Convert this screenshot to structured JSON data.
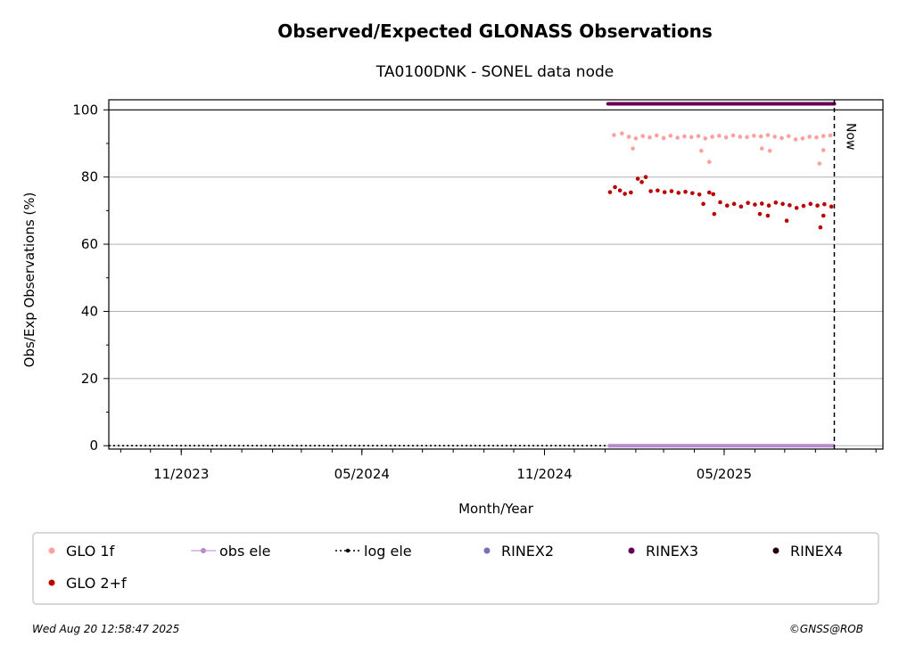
{
  "chart_data": {
    "type": "scatter",
    "title": "Observed/Expected GLONASS Observations",
    "subtitle": "TA0100DNK - SONEL data node",
    "xlabel": "Month/Year",
    "ylabel": "Obs/Exp Observations (%)",
    "x_range": [
      "2023-08-20",
      "2025-10-08"
    ],
    "ylim": [
      -1,
      103
    ],
    "x_ticks": [
      {
        "date": "2023-11-01",
        "label": "11/2023"
      },
      {
        "date": "2024-05-01",
        "label": "05/2024"
      },
      {
        "date": "2024-11-01",
        "label": "11/2024"
      },
      {
        "date": "2025-05-01",
        "label": "05/2025"
      }
    ],
    "y_ticks": [
      0,
      20,
      40,
      60,
      80,
      100
    ],
    "grid": "horizontal",
    "now_date": "2025-08-20",
    "now_label": "Now",
    "series": [
      {
        "name": "GLO 1f",
        "color": "#ffa0a0",
        "points": [
          [
            "2025-01-10",
            92.5
          ],
          [
            "2025-01-18",
            93.0
          ],
          [
            "2025-01-25",
            92.0
          ],
          [
            "2025-02-01",
            91.5
          ],
          [
            "2025-02-08",
            92.2
          ],
          [
            "2025-02-15",
            91.8
          ],
          [
            "2025-02-22",
            92.4
          ],
          [
            "2025-03-01",
            91.6
          ],
          [
            "2025-03-08",
            92.3
          ],
          [
            "2025-03-15",
            91.7
          ],
          [
            "2025-03-22",
            92.1
          ],
          [
            "2025-03-29",
            91.9
          ],
          [
            "2025-04-05",
            92.2
          ],
          [
            "2025-04-12",
            91.5
          ],
          [
            "2025-04-19",
            92.0
          ],
          [
            "2025-04-26",
            92.3
          ],
          [
            "2025-05-03",
            91.8
          ],
          [
            "2025-05-10",
            92.4
          ],
          [
            "2025-05-17",
            92.0
          ],
          [
            "2025-05-24",
            91.9
          ],
          [
            "2025-05-31",
            92.3
          ],
          [
            "2025-06-07",
            92.1
          ],
          [
            "2025-06-14",
            92.5
          ],
          [
            "2025-06-21",
            92.0
          ],
          [
            "2025-06-28",
            91.6
          ],
          [
            "2025-07-05",
            92.2
          ],
          [
            "2025-07-12",
            91.2
          ],
          [
            "2025-07-19",
            91.5
          ],
          [
            "2025-07-26",
            92.0
          ],
          [
            "2025-08-02",
            91.8
          ],
          [
            "2025-08-09",
            92.2
          ],
          [
            "2025-08-16",
            92.4
          ],
          [
            "2025-01-29",
            88.5
          ],
          [
            "2025-04-08",
            87.8
          ],
          [
            "2025-04-16",
            84.5
          ],
          [
            "2025-06-08",
            88.5
          ],
          [
            "2025-06-16",
            87.8
          ],
          [
            "2025-08-05",
            84.0
          ],
          [
            "2025-08-09",
            88.0
          ]
        ]
      },
      {
        "name": "GLO 2+f",
        "color": "#bb0000",
        "points": [
          [
            "2025-01-06",
            75.5
          ],
          [
            "2025-01-11",
            77.0
          ],
          [
            "2025-01-16",
            76.0
          ],
          [
            "2025-01-21",
            75.0
          ],
          [
            "2025-01-27",
            75.4
          ],
          [
            "2025-02-03",
            79.5
          ],
          [
            "2025-02-07",
            78.5
          ],
          [
            "2025-02-11",
            80.0
          ],
          [
            "2025-02-16",
            75.8
          ],
          [
            "2025-02-23",
            76.0
          ],
          [
            "2025-03-02",
            75.5
          ],
          [
            "2025-03-09",
            75.8
          ],
          [
            "2025-03-16",
            75.3
          ],
          [
            "2025-03-23",
            75.6
          ],
          [
            "2025-03-30",
            75.2
          ],
          [
            "2025-04-06",
            74.8
          ],
          [
            "2025-04-10",
            72.0
          ],
          [
            "2025-04-16",
            75.4
          ],
          [
            "2025-04-20",
            74.9
          ],
          [
            "2025-04-27",
            72.5
          ],
          [
            "2025-05-04",
            71.5
          ],
          [
            "2025-05-11",
            72.0
          ],
          [
            "2025-05-18",
            71.2
          ],
          [
            "2025-05-25",
            72.3
          ],
          [
            "2025-06-01",
            71.8
          ],
          [
            "2025-06-08",
            72.1
          ],
          [
            "2025-06-15",
            71.5
          ],
          [
            "2025-06-22",
            72.4
          ],
          [
            "2025-06-29",
            72.0
          ],
          [
            "2025-07-06",
            71.6
          ],
          [
            "2025-07-13",
            70.8
          ],
          [
            "2025-07-20",
            71.4
          ],
          [
            "2025-07-27",
            72.0
          ],
          [
            "2025-08-03",
            71.5
          ],
          [
            "2025-08-10",
            71.9
          ],
          [
            "2025-08-17",
            71.2
          ],
          [
            "2025-04-21",
            69.0
          ],
          [
            "2025-06-06",
            69.0
          ],
          [
            "2025-06-14",
            68.5
          ],
          [
            "2025-07-03",
            67.0
          ],
          [
            "2025-08-06",
            65.0
          ],
          [
            "2025-08-09",
            68.5
          ]
        ]
      },
      {
        "name": "RINEX3",
        "color": "#660055",
        "points": [
          [
            "2025-01-04",
            101.8
          ],
          [
            "2025-08-20",
            101.8
          ]
        ]
      },
      {
        "name": "obs ele",
        "color": "#bb88cc",
        "points": [
          [
            "2025-01-04",
            0.0
          ],
          [
            "2025-08-20",
            0.0
          ]
        ]
      },
      {
        "name": "log ele",
        "color": "#000000",
        "points": [
          [
            "2023-08-20",
            0.0
          ],
          [
            "2025-08-20",
            0.0
          ]
        ]
      }
    ],
    "legend": {
      "placement": "below",
      "entries": [
        {
          "label": "GLO 1f",
          "color": "#ffa0a0",
          "marker": "dot"
        },
        {
          "label": "obs ele",
          "color": "#bb88cc",
          "marker": "line-dot"
        },
        {
          "label": "log ele",
          "color": "#000000",
          "marker": "dotted-line"
        },
        {
          "label": "RINEX2",
          "color": "#7a6fb8",
          "marker": "dot"
        },
        {
          "label": "RINEX3",
          "color": "#660055",
          "marker": "dot"
        },
        {
          "label": "RINEX4",
          "color": "#220011",
          "marker": "dot"
        },
        {
          "label": "GLO 2+f",
          "color": "#bb0000",
          "marker": "dot"
        }
      ]
    }
  },
  "footer": {
    "timestamp": "Wed Aug 20 12:58:47 2025",
    "credit": "©GNSS@ROB"
  }
}
